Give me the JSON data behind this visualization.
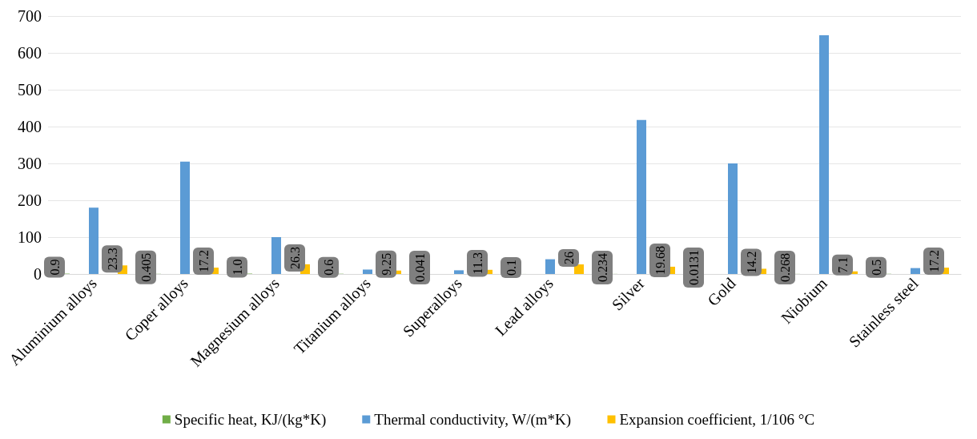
{
  "chart_data": {
    "type": "bar",
    "categories": [
      "Aluminium alloys",
      "Coper alloys",
      "Magnesium alloys",
      "Titanium alloys",
      "Superalloys",
      "Lead alloys",
      "Silver",
      "Gold",
      "Niobium",
      "Stainless steel"
    ],
    "series": [
      {
        "name": "Specific heat, KJ/(kg*K)",
        "color": "#70ad47",
        "values": [
          0.9,
          0.405,
          1.0,
          0.6,
          0.041,
          0.1,
          0.234,
          0.0131,
          0.268,
          0.5
        ],
        "value_labels": [
          "0.9",
          "0.405",
          "1.0",
          "0.6",
          "0.041",
          "0.1",
          "0.234",
          "0.0131",
          "0.268",
          "0.5"
        ]
      },
      {
        "name": "Thermal conductivity, W/(m*K)",
        "color": "#5b9bd5",
        "values": [
          180,
          305,
          100,
          12,
          10,
          40,
          418,
          300,
          648,
          16
        ]
      },
      {
        "name": "Expansion coefficient, 1/106 °C",
        "color": "#ffc000",
        "values": [
          23.3,
          17.2,
          26.3,
          9.25,
          11.3,
          26,
          19.68,
          14.2,
          7.1,
          17.2
        ],
        "value_labels": [
          "23.3",
          "17.2",
          "26.3",
          "9.25",
          "11.3",
          "26",
          "19.68",
          "14.2",
          "7.1",
          "17.2"
        ]
      }
    ],
    "ylim": [
      0,
      700
    ],
    "yticks": [
      0,
      100,
      200,
      300,
      400,
      500,
      600,
      700
    ],
    "grid": "y",
    "legend": "bottom"
  }
}
